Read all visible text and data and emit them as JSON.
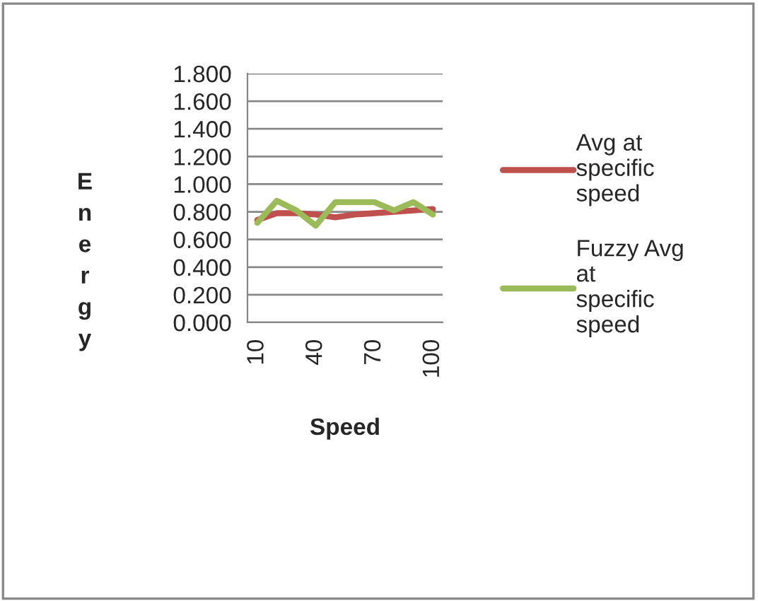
{
  "chart_data": {
    "type": "line",
    "xlabel": "Speed",
    "ylabel": "Energy",
    "categories": [
      "10",
      null,
      null,
      "40",
      null,
      null,
      "70",
      null,
      null,
      "100"
    ],
    "series": [
      {
        "name": "Avg at specific speed",
        "color": "#c0504d",
        "values": [
          0.74,
          0.79,
          0.79,
          0.78,
          0.76,
          0.78,
          0.79,
          0.8,
          0.81,
          0.82
        ]
      },
      {
        "name": "Fuzzy Avg at specific speed",
        "color": "#9bbb59",
        "values": [
          0.72,
          0.88,
          0.81,
          0.7,
          0.87,
          0.87,
          0.87,
          0.81,
          0.87,
          0.78
        ]
      }
    ],
    "ylim": [
      0,
      1.8
    ],
    "yticks": [
      {
        "value": 0,
        "label": "0.000"
      },
      {
        "value": 0.2,
        "label": "0.200"
      },
      {
        "value": 0.4,
        "label": "0.400"
      },
      {
        "value": 0.6,
        "label": "0.600"
      },
      {
        "value": 0.8,
        "label": "0.800"
      },
      {
        "value": 1.0,
        "label": "1.000"
      },
      {
        "value": 1.2,
        "label": "1.200"
      },
      {
        "value": 1.4,
        "label": "1.400"
      },
      {
        "value": 1.6,
        "label": "1.600"
      },
      {
        "value": 1.8,
        "label": "1.800"
      }
    ],
    "grid": "y",
    "legend": "right",
    "marker": "none",
    "line_style": "solid"
  }
}
